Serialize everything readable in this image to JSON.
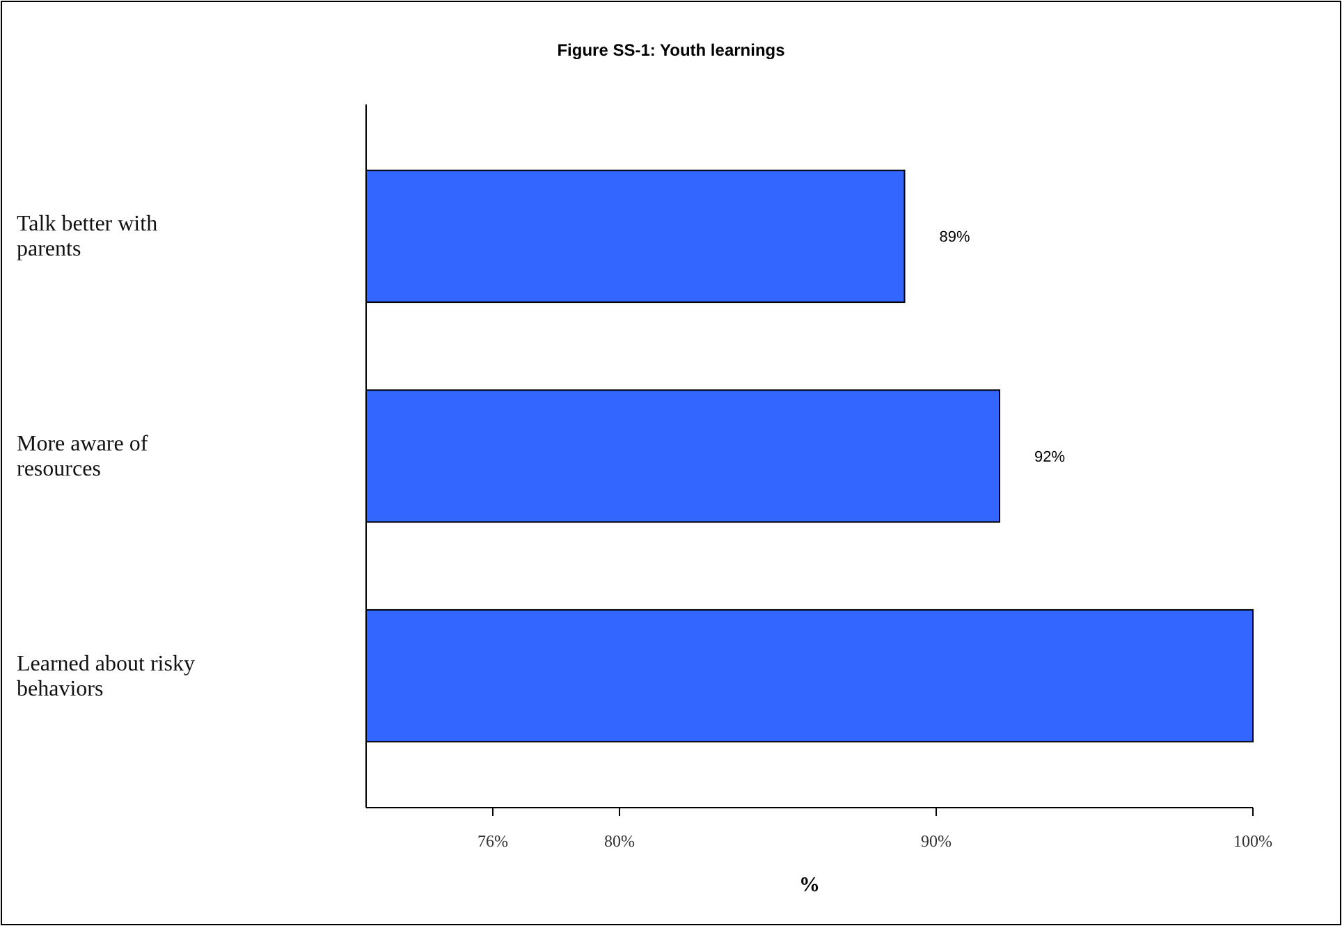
{
  "chart_data": {
    "type": "bar",
    "orientation": "horizontal",
    "title": "Figure SS-1: Youth learnings",
    "xlabel": "%",
    "categories": [
      "Talk better with parents",
      "More aware of resources",
      "Learned about risky behaviors"
    ],
    "values": [
      89,
      92,
      100
    ],
    "color": "#3366ff",
    "value_labels": [
      "89%",
      "92%",
      null
    ],
    "xlim": [
      72,
      100
    ],
    "xticks": [
      {
        "value": 76,
        "label": "76%"
      },
      {
        "value": 80,
        "label": "80%"
      },
      {
        "value": 90,
        "label": "90%"
      },
      {
        "value": 100,
        "label": "100%"
      }
    ],
    "grid": false
  }
}
